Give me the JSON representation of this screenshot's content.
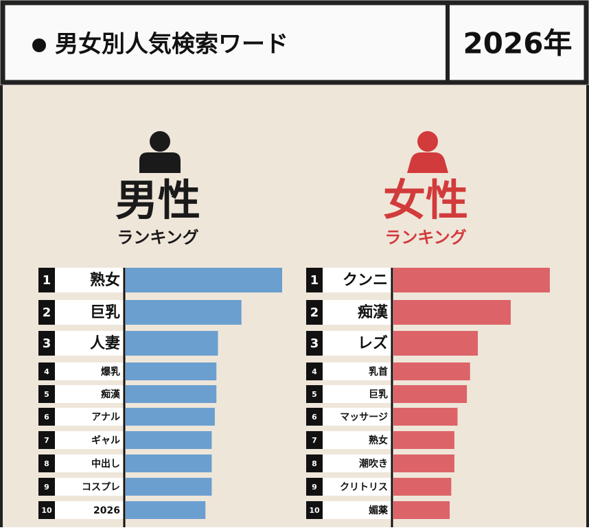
{
  "header": {
    "title": "男女別人気検索ワード",
    "year": "2026年"
  },
  "chart_data": [
    {
      "type": "bar",
      "title": "男性",
      "subtitle": "ランキング",
      "title_color": "#1a1a1a",
      "color": "#6b9fcf",
      "ranks": [
        1,
        2,
        3,
        4,
        5,
        6,
        7,
        8,
        9,
        10
      ],
      "categories": [
        "熟女",
        "巨乳",
        "人妻",
        "爆乳",
        "痴漢",
        "アナル",
        "ギャル",
        "中出し",
        "コスプレ",
        "2026"
      ],
      "values": [
        100,
        74,
        59,
        58,
        58,
        57,
        55,
        55,
        55,
        51
      ],
      "xlim": [
        0,
        100
      ]
    },
    {
      "type": "bar",
      "title": "女性",
      "subtitle": "ランキング",
      "title_color": "#d23b3b",
      "color": "#dc6468",
      "ranks": [
        1,
        2,
        3,
        4,
        5,
        6,
        7,
        8,
        9,
        10
      ],
      "categories": [
        "クンニ",
        "痴漢",
        "レズ",
        "乳首",
        "巨乳",
        "マッサージ",
        "熟女",
        "潮吹き",
        "クリトリス",
        "媚薬"
      ],
      "values": [
        100,
        75,
        54,
        49,
        47,
        41,
        39,
        39,
        37,
        36
      ],
      "xlim": [
        0,
        100
      ]
    }
  ]
}
